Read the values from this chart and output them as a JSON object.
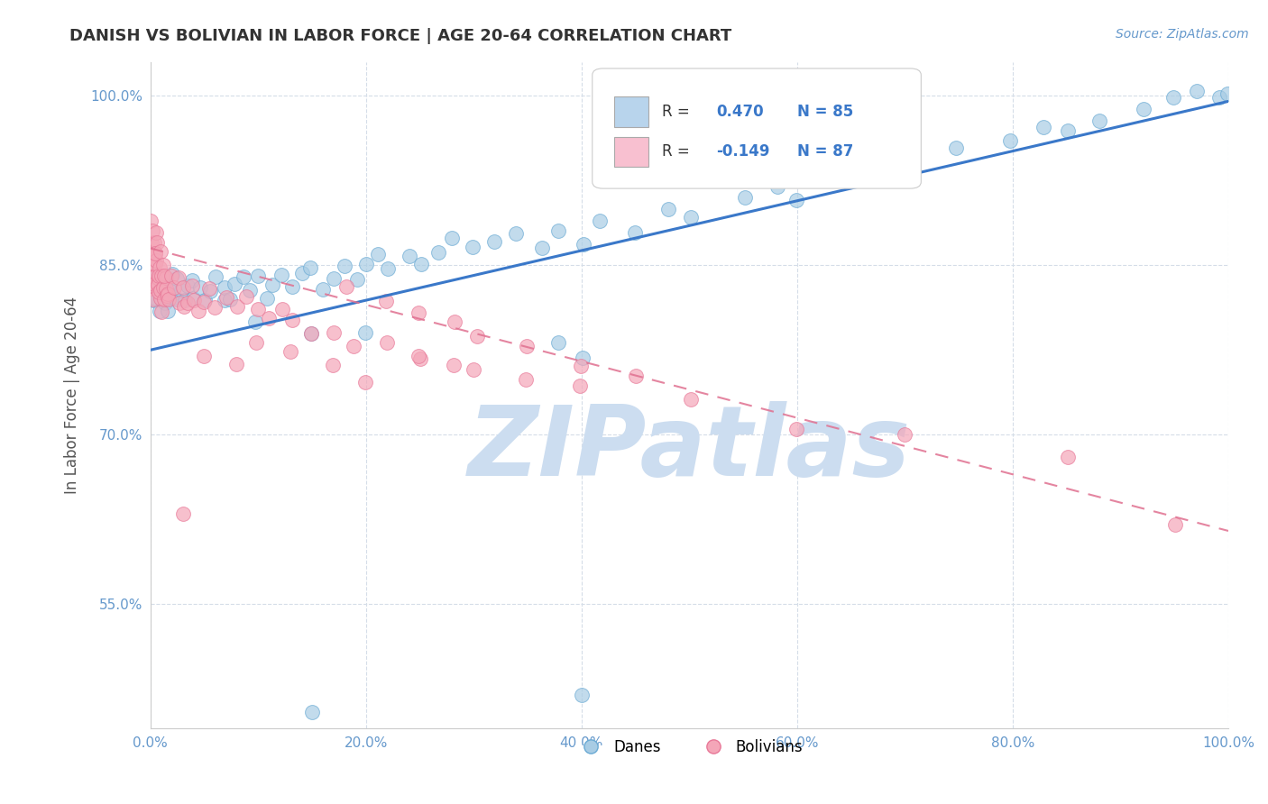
{
  "title": "DANISH VS BOLIVIAN IN LABOR FORCE | AGE 20-64 CORRELATION CHART",
  "source_text": "Source: ZipAtlas.com",
  "ylabel": "In Labor Force | Age 20-64",
  "xlim": [
    0.0,
    1.0
  ],
  "ylim": [
    0.44,
    1.03
  ],
  "yticks": [
    0.55,
    0.7,
    0.85,
    1.0
  ],
  "ytick_labels": [
    "55.0%",
    "70.0%",
    "85.0%",
    "100.0%"
  ],
  "xticks": [
    0.0,
    0.2,
    0.4,
    0.6,
    0.8,
    1.0
  ],
  "xtick_labels": [
    "0.0%",
    "20.0%",
    "40.0%",
    "60.0%",
    "80.0%",
    "100.0%"
  ],
  "dane_color": "#a8cce4",
  "bolivian_color": "#f4a6b8",
  "dane_edge_color": "#6aaad4",
  "bolivian_edge_color": "#e87898",
  "trend_dane_color": "#3a78c9",
  "trend_bolivian_color": "#e07090",
  "dane_trend_x": [
    0.0,
    1.0
  ],
  "dane_trend_y": [
    0.775,
    0.995
  ],
  "bolivian_trend_x": [
    0.0,
    1.0
  ],
  "bolivian_trend_y": [
    0.865,
    0.615
  ],
  "R_dane": 0.47,
  "N_dane": 85,
  "R_bolivian": -0.149,
  "N_bolivian": 87,
  "watermark": "ZIPatlas",
  "watermark_color": "#ccddf0",
  "background_color": "#ffffff",
  "title_color": "#333333",
  "axis_label_color": "#555555",
  "tick_color": "#6699cc",
  "grid_color": "#d5dde8",
  "legend_box_dane_color": "#b8d4ec",
  "legend_box_bolivian_color": "#f8c0d0",
  "legend_R_color": "#3a78c9",
  "dane_scatter_x": [
    0.005,
    0.005,
    0.005,
    0.008,
    0.008,
    0.008,
    0.008,
    0.01,
    0.01,
    0.01,
    0.012,
    0.012,
    0.015,
    0.015,
    0.018,
    0.018,
    0.02,
    0.02,
    0.02,
    0.025,
    0.025,
    0.03,
    0.03,
    0.035,
    0.04,
    0.04,
    0.045,
    0.05,
    0.055,
    0.06,
    0.065,
    0.07,
    0.075,
    0.08,
    0.085,
    0.09,
    0.1,
    0.11,
    0.115,
    0.12,
    0.13,
    0.14,
    0.15,
    0.16,
    0.17,
    0.18,
    0.19,
    0.2,
    0.21,
    0.22,
    0.24,
    0.25,
    0.27,
    0.28,
    0.3,
    0.32,
    0.34,
    0.36,
    0.38,
    0.4,
    0.42,
    0.45,
    0.48,
    0.5,
    0.55,
    0.58,
    0.6,
    0.65,
    0.68,
    0.7,
    0.75,
    0.8,
    0.83,
    0.85,
    0.88,
    0.92,
    0.95,
    0.97,
    0.99,
    1.0,
    0.4,
    0.38,
    0.2,
    0.15,
    0.1
  ],
  "dane_scatter_y": [
    0.83,
    0.82,
    0.84,
    0.83,
    0.82,
    0.84,
    0.81,
    0.84,
    0.82,
    0.83,
    0.82,
    0.83,
    0.84,
    0.82,
    0.83,
    0.81,
    0.84,
    0.83,
    0.82,
    0.84,
    0.82,
    0.83,
    0.82,
    0.83,
    0.84,
    0.82,
    0.83,
    0.82,
    0.83,
    0.84,
    0.82,
    0.83,
    0.82,
    0.83,
    0.84,
    0.83,
    0.84,
    0.82,
    0.83,
    0.84,
    0.83,
    0.84,
    0.85,
    0.83,
    0.84,
    0.85,
    0.84,
    0.85,
    0.86,
    0.85,
    0.86,
    0.85,
    0.86,
    0.87,
    0.86,
    0.87,
    0.88,
    0.87,
    0.88,
    0.87,
    0.89,
    0.88,
    0.9,
    0.89,
    0.91,
    0.92,
    0.91,
    0.93,
    0.94,
    0.93,
    0.95,
    0.96,
    0.97,
    0.97,
    0.98,
    0.99,
    1.0,
    1.0,
    1.0,
    1.0,
    0.77,
    0.78,
    0.79,
    0.79,
    0.8
  ],
  "bolivian_scatter_x": [
    0.001,
    0.001,
    0.001,
    0.001,
    0.001,
    0.002,
    0.002,
    0.002,
    0.002,
    0.003,
    0.003,
    0.003,
    0.003,
    0.004,
    0.004,
    0.005,
    0.005,
    0.005,
    0.006,
    0.006,
    0.007,
    0.007,
    0.008,
    0.008,
    0.009,
    0.01,
    0.01,
    0.01,
    0.01,
    0.012,
    0.012,
    0.013,
    0.013,
    0.014,
    0.015,
    0.015,
    0.017,
    0.018,
    0.02,
    0.022,
    0.025,
    0.028,
    0.03,
    0.032,
    0.035,
    0.038,
    0.04,
    0.043,
    0.05,
    0.055,
    0.06,
    0.07,
    0.08,
    0.09,
    0.1,
    0.11,
    0.12,
    0.13,
    0.15,
    0.17,
    0.19,
    0.22,
    0.25,
    0.28,
    0.05,
    0.08,
    0.1,
    0.13,
    0.17,
    0.2,
    0.25,
    0.3,
    0.35,
    0.4,
    0.18,
    0.22,
    0.25,
    0.28,
    0.3,
    0.35,
    0.4,
    0.45,
    0.5,
    0.6,
    0.7,
    0.85,
    0.95
  ],
  "bolivian_scatter_y": [
    0.89,
    0.87,
    0.86,
    0.84,
    0.83,
    0.88,
    0.86,
    0.85,
    0.83,
    0.87,
    0.85,
    0.84,
    0.82,
    0.88,
    0.86,
    0.87,
    0.85,
    0.83,
    0.86,
    0.84,
    0.85,
    0.83,
    0.84,
    0.82,
    0.83,
    0.86,
    0.84,
    0.83,
    0.81,
    0.85,
    0.83,
    0.84,
    0.82,
    0.83,
    0.84,
    0.82,
    0.83,
    0.82,
    0.84,
    0.83,
    0.84,
    0.82,
    0.83,
    0.81,
    0.82,
    0.83,
    0.82,
    0.81,
    0.82,
    0.83,
    0.81,
    0.82,
    0.81,
    0.82,
    0.81,
    0.8,
    0.81,
    0.8,
    0.79,
    0.79,
    0.78,
    0.78,
    0.77,
    0.76,
    0.77,
    0.76,
    0.78,
    0.77,
    0.76,
    0.75,
    0.77,
    0.76,
    0.75,
    0.74,
    0.83,
    0.82,
    0.81,
    0.8,
    0.79,
    0.78,
    0.76,
    0.75,
    0.73,
    0.71,
    0.7,
    0.68,
    0.62
  ]
}
